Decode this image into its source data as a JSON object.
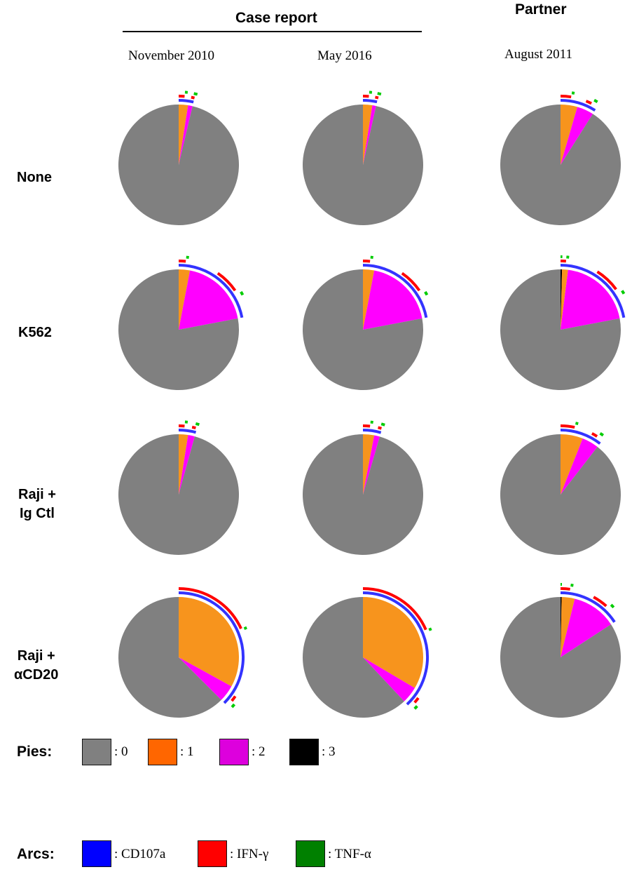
{
  "header": {
    "group_case": "Case report",
    "group_partner": "Partner"
  },
  "columns": [
    "November 2010",
    "May 2016",
    "August 2011"
  ],
  "rows": [
    "None",
    "K562",
    "Raji +\nIg Ctl",
    "Raji +\nαCD20"
  ],
  "legend": {
    "pies_title": "Pies:",
    "pies": [
      {
        "label": ": 0",
        "color": "#808080"
      },
      {
        "label": ": 1",
        "color": "#ff6600"
      },
      {
        "label": ": 2",
        "color": "#dd00dd"
      },
      {
        "label": ": 3",
        "color": "#000000"
      }
    ],
    "arcs_title": "Arcs:",
    "arcs": [
      {
        "label": ": CD107a",
        "color": "#0000ff"
      },
      {
        "label": ": IFN-γ",
        "color": "#ff0000"
      },
      {
        "label": ": TNF-α",
        "color": "#008000"
      }
    ]
  },
  "chart_data": {
    "type": "pie",
    "pie_colors": {
      "0": "#808080",
      "1": "#f7941d",
      "2": "#ff00ff",
      "3": "#000000"
    },
    "arc_colors": {
      "CD107a": "#3333ff",
      "IFN-γ": "#ff0000",
      "TNF-α": "#00cc00"
    },
    "pies": [
      {
        "row": "None",
        "column": "November 2010",
        "fractions": {
          "3": 0.0,
          "1": 0.025,
          "2": 0.012,
          "0": 0.963
        }
      },
      {
        "row": "None",
        "column": "May 2016",
        "fractions": {
          "3": 0.0,
          "1": 0.025,
          "2": 0.01,
          "0": 0.965
        }
      },
      {
        "row": "None",
        "column": "August 2011",
        "fractions": {
          "3": 0.0,
          "1": 0.045,
          "2": 0.045,
          "0": 0.91
        }
      },
      {
        "row": "K562",
        "column": "November 2010",
        "fractions": {
          "3": 0.0,
          "1": 0.03,
          "2": 0.19,
          "0": 0.78
        }
      },
      {
        "row": "K562",
        "column": "May 2016",
        "fractions": {
          "3": 0.0,
          "1": 0.03,
          "2": 0.19,
          "0": 0.78
        }
      },
      {
        "row": "K562",
        "column": "August 2011",
        "fractions": {
          "3": 0.004,
          "1": 0.016,
          "2": 0.2,
          "0": 0.78
        }
      },
      {
        "row": "Raji + Ig Ctl",
        "column": "November 2010",
        "fractions": {
          "3": 0.0,
          "1": 0.025,
          "2": 0.018,
          "0": 0.957
        }
      },
      {
        "row": "Raji + Ig Ctl",
        "column": "May 2016",
        "fractions": {
          "3": 0.0,
          "1": 0.03,
          "2": 0.015,
          "0": 0.955
        }
      },
      {
        "row": "Raji + Ig Ctl",
        "column": "August 2011",
        "fractions": {
          "3": 0.0,
          "1": 0.06,
          "2": 0.045,
          "0": 0.895
        }
      },
      {
        "row": "Raji + αCD20",
        "column": "November 2010",
        "fractions": {
          "3": 0.0,
          "1": 0.33,
          "2": 0.045,
          "0": 0.625
        }
      },
      {
        "row": "Raji + αCD20",
        "column": "May 2016",
        "fractions": {
          "3": 0.0,
          "1": 0.335,
          "2": 0.045,
          "0": 0.62
        }
      },
      {
        "row": "Raji + αCD20",
        "column": "August 2011",
        "fractions": {
          "3": 0.003,
          "1": 0.035,
          "2": 0.12,
          "0": 0.842
        }
      }
    ]
  }
}
